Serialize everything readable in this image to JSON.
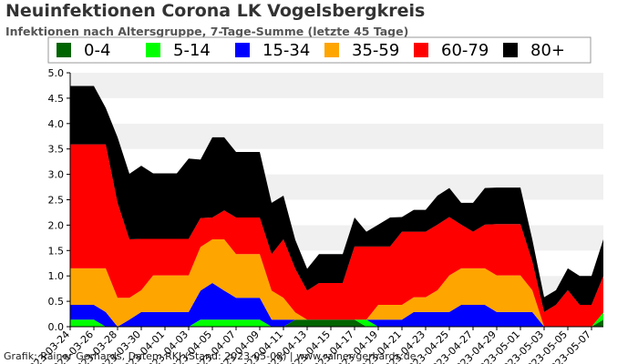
{
  "header": {
    "title": "Neuinfektionen Corona LK Vogelsbergkreis",
    "subtitle": "Infektionen nach Altersgruppe, 7-Tage-Summe (letzte 45 Tage)"
  },
  "footer": {
    "credit": "Grafik: Rainer Gerhards, Daten: RKI (Stand: 2023-05-08) | www.rainer-gerhards.de"
  },
  "chart_data": {
    "type": "area",
    "stacked": true,
    "title": "Neuinfektionen Corona LK Vogelsbergkreis",
    "subtitle": "Infektionen nach Altersgruppe, 7-Tage-Summe (letzte 45 Tage)",
    "xlabel": "",
    "ylabel": "",
    "ylim": [
      0,
      5
    ],
    "yticks": [
      0.0,
      0.5,
      1.0,
      1.5,
      2.0,
      2.5,
      3.0,
      3.5,
      4.0,
      4.5,
      5.0
    ],
    "grid": "horizontal bands",
    "legend_position": "top",
    "x": [
      "2023-03-24",
      "2023-03-25",
      "2023-03-26",
      "2023-03-27",
      "2023-03-28",
      "2023-03-29",
      "2023-03-30",
      "2023-03-31",
      "2023-04-01",
      "2023-04-02",
      "2023-04-03",
      "2023-04-04",
      "2023-04-05",
      "2023-04-06",
      "2023-04-07",
      "2023-04-08",
      "2023-04-09",
      "2023-04-10",
      "2023-04-11",
      "2023-04-12",
      "2023-04-13",
      "2023-04-14",
      "2023-04-15",
      "2023-04-16",
      "2023-04-17",
      "2023-04-18",
      "2023-04-19",
      "2023-04-20",
      "2023-04-21",
      "2023-04-22",
      "2023-04-23",
      "2023-04-24",
      "2023-04-25",
      "2023-04-26",
      "2023-04-27",
      "2023-04-28",
      "2023-04-29",
      "2023-04-30",
      "2023-05-01",
      "2023-05-02",
      "2023-05-03",
      "2023-05-04",
      "2023-05-05",
      "2023-05-06",
      "2023-05-07",
      "2023-05-08"
    ],
    "xtick_labels": [
      "2023-03-24",
      "2023-03-26",
      "2023-03-28",
      "2023-03-30",
      "2023-04-01",
      "2023-04-03",
      "2023-04-05",
      "2023-04-07",
      "2023-04-09",
      "2023-04-11",
      "2023-04-13",
      "2023-04-15",
      "2023-04-17",
      "2023-04-19",
      "2023-04-21",
      "2023-04-23",
      "2023-04-25",
      "2023-04-27",
      "2023-04-29",
      "2023-05-01",
      "2023-05-03",
      "2023-05-05",
      "2023-05-07"
    ],
    "series": [
      {
        "name": "0-4",
        "color": "#006400",
        "values": [
          0,
          0,
          0,
          0,
          0,
          0,
          0,
          0,
          0,
          0,
          0,
          0,
          0,
          0,
          0,
          0,
          0,
          0,
          0,
          0.14,
          0.14,
          0.14,
          0.14,
          0.14,
          0.14,
          0,
          0,
          0,
          0,
          0,
          0,
          0,
          0,
          0,
          0,
          0,
          0,
          0,
          0,
          0,
          0,
          0,
          0,
          0,
          0,
          0.14
        ]
      },
      {
        "name": "5-14",
        "color": "#00ff00",
        "values": [
          0.14,
          0.14,
          0.14,
          0,
          0,
          0,
          0,
          0,
          0,
          0,
          0,
          0.14,
          0.14,
          0.14,
          0.14,
          0.14,
          0.14,
          0,
          0,
          0,
          0,
          0,
          0,
          0,
          0,
          0.14,
          0,
          0,
          0,
          0,
          0,
          0,
          0,
          0,
          0,
          0,
          0,
          0,
          0,
          0,
          0,
          0,
          0,
          0,
          0,
          0.14
        ]
      },
      {
        "name": "15-34",
        "color": "#0000ff",
        "values": [
          0.29,
          0.29,
          0.29,
          0.29,
          0,
          0.14,
          0.29,
          0.29,
          0.29,
          0.29,
          0.29,
          0.57,
          0.72,
          0.57,
          0.43,
          0.43,
          0.43,
          0.14,
          0.14,
          0,
          0,
          0,
          0,
          0,
          0,
          0,
          0.14,
          0.14,
          0.14,
          0.29,
          0.29,
          0.29,
          0.29,
          0.43,
          0.43,
          0.43,
          0.29,
          0.29,
          0.29,
          0.29,
          0,
          0,
          0,
          0,
          0,
          0
        ]
      },
      {
        "name": "35-59",
        "color": "#ffa500",
        "values": [
          0.72,
          0.72,
          0.72,
          0.86,
          0.57,
          0.43,
          0.43,
          0.72,
          0.72,
          0.72,
          0.72,
          0.86,
          0.86,
          1.01,
          0.86,
          0.86,
          0.86,
          0.57,
          0.43,
          0.14,
          0,
          0,
          0,
          0,
          0,
          0,
          0.29,
          0.29,
          0.29,
          0.29,
          0.29,
          0.43,
          0.72,
          0.72,
          0.72,
          0.72,
          0.72,
          0.72,
          0.72,
          0.43,
          0,
          0,
          0,
          0,
          0,
          0
        ]
      },
      {
        "name": "60-79",
        "color": "#ff0000",
        "values": [
          2.44,
          2.44,
          2.44,
          2.44,
          1.87,
          1.15,
          1.01,
          0.72,
          0.72,
          0.72,
          0.72,
          0.57,
          0.43,
          0.57,
          0.72,
          0.72,
          0.72,
          0.72,
          1.15,
          0.86,
          0.57,
          0.72,
          0.72,
          0.72,
          1.44,
          1.44,
          1.15,
          1.15,
          1.44,
          1.29,
          1.29,
          1.29,
          1.15,
          0.86,
          0.72,
          0.86,
          1.01,
          1.01,
          1.01,
          0.57,
          0.29,
          0.43,
          0.72,
          0.43,
          0.43,
          0.72
        ]
      },
      {
        "name": "80+",
        "color": "#000000",
        "values": [
          1.15,
          1.15,
          1.15,
          0.72,
          1.29,
          1.29,
          1.44,
          1.29,
          1.29,
          1.29,
          1.58,
          1.15,
          1.58,
          1.44,
          1.29,
          1.29,
          1.29,
          1.01,
          0.86,
          0.57,
          0.43,
          0.57,
          0.57,
          0.57,
          0.57,
          0.29,
          0.43,
          0.57,
          0.29,
          0.43,
          0.43,
          0.57,
          0.57,
          0.43,
          0.57,
          0.72,
          0.72,
          0.72,
          0.72,
          0.43,
          0.29,
          0.29,
          0.43,
          0.57,
          0.57,
          0.72
        ]
      }
    ]
  }
}
